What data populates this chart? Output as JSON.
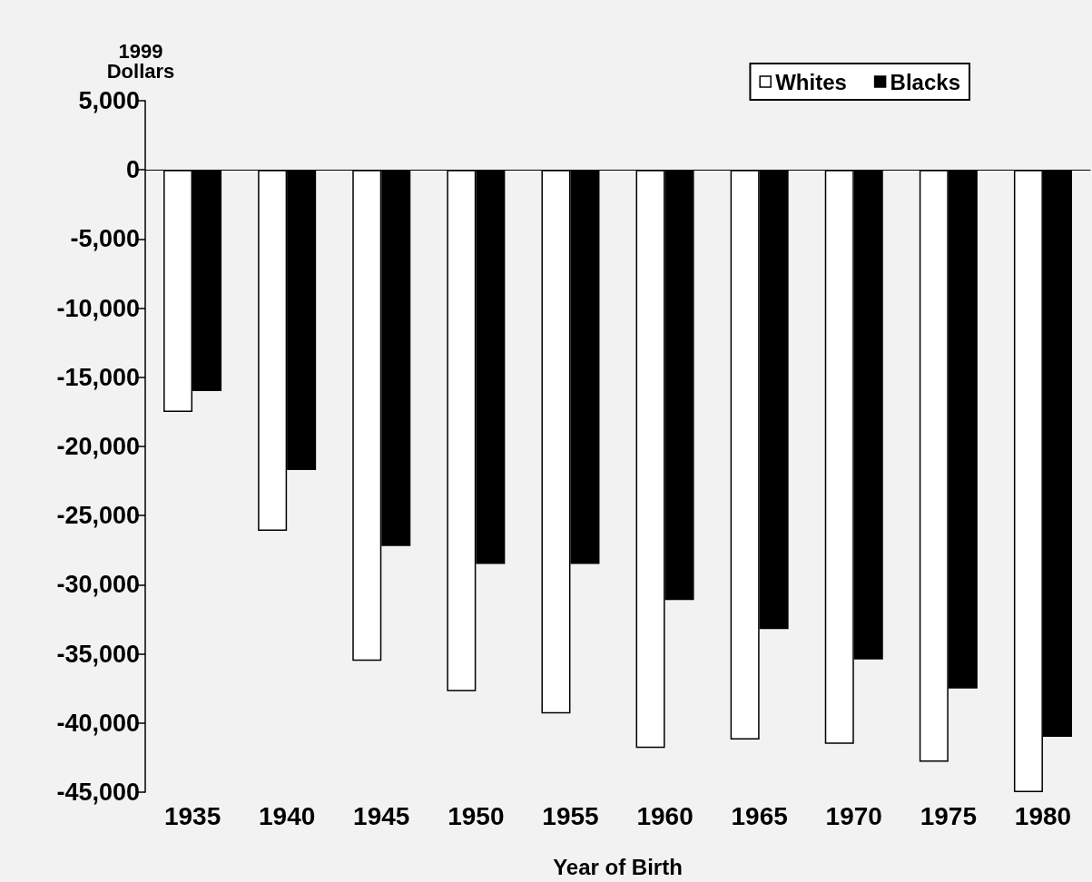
{
  "chart_data": {
    "type": "bar",
    "ylabel": "1999\nDollars",
    "xlabel": "Year of Birth",
    "categories": [
      "1935",
      "1940",
      "1945",
      "1950",
      "1955",
      "1960",
      "1965",
      "1970",
      "1975",
      "1980"
    ],
    "series": [
      {
        "name": "Whites",
        "color": "#ffffff",
        "values": [
          -17500,
          -26100,
          -35500,
          -37700,
          -39300,
          -41800,
          -41200,
          -41500,
          -42800,
          -45000
        ]
      },
      {
        "name": "Blacks",
        "color": "#000000",
        "values": [
          -16000,
          -21700,
          -27200,
          -28500,
          -28500,
          -31100,
          -33200,
          -35400,
          -37500,
          -41000
        ]
      }
    ],
    "ylim": [
      -45000,
      5000
    ],
    "yticks": [
      {
        "value": -45000,
        "label": "-45,000"
      },
      {
        "value": -40000,
        "label": "-40,000"
      },
      {
        "value": -35000,
        "label": "-35,000"
      },
      {
        "value": -30000,
        "label": "-30,000"
      },
      {
        "value": -25000,
        "label": "-25,000"
      },
      {
        "value": -20000,
        "label": "-20,000"
      },
      {
        "value": -15000,
        "label": "-15,000"
      },
      {
        "value": -10000,
        "label": "-10,000"
      },
      {
        "value": -5000,
        "label": "-5,000"
      },
      0,
      {
        "value": 5000,
        "label": "5,000"
      }
    ],
    "legend": "top right"
  }
}
